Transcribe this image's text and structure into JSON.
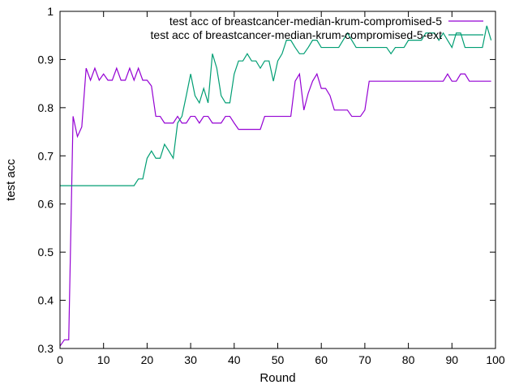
{
  "chart_data": {
    "type": "line",
    "title": "",
    "xlabel": "Round",
    "ylabel": "test acc",
    "xlim": [
      0,
      100
    ],
    "ylim": [
      0.3,
      1.0
    ],
    "xticks": [
      0,
      10,
      20,
      30,
      40,
      50,
      60,
      70,
      80,
      90,
      100
    ],
    "yticks": [
      0.3,
      0.4,
      0.5,
      0.6,
      0.7,
      0.8,
      0.9,
      1
    ],
    "xtick_labels": [
      "0",
      "10",
      "20",
      "30",
      "40",
      "50",
      "60",
      "70",
      "80",
      "90",
      "100"
    ],
    "ytick_labels": [
      "0.3",
      "0.4",
      "0.5",
      "0.6",
      "0.7",
      "0.8",
      "0.9",
      "1"
    ],
    "grid": false,
    "legend_position": "top-right",
    "series": [
      {
        "name": "test acc of breastcancer-median-krum-compromised-5",
        "color": "#9400d3",
        "values": [
          0.305,
          0.318,
          0.318,
          0.782,
          0.74,
          0.76,
          0.882,
          0.857,
          0.882,
          0.857,
          0.87,
          0.857,
          0.857,
          0.882,
          0.857,
          0.857,
          0.882,
          0.857,
          0.882,
          0.857,
          0.857,
          0.845,
          0.782,
          0.782,
          0.768,
          0.768,
          0.768,
          0.782,
          0.768,
          0.768,
          0.782,
          0.782,
          0.768,
          0.782,
          0.782,
          0.768,
          0.768,
          0.768,
          0.782,
          0.782,
          0.768,
          0.755,
          0.755,
          0.755,
          0.755,
          0.755,
          0.755,
          0.782,
          0.782,
          0.782,
          0.782,
          0.782,
          0.782,
          0.782,
          0.855,
          0.87,
          0.795,
          0.83,
          0.855,
          0.87,
          0.84,
          0.84,
          0.825,
          0.795,
          0.795,
          0.795,
          0.795,
          0.782,
          0.782,
          0.782,
          0.795,
          0.855,
          0.855,
          0.855,
          0.855,
          0.855,
          0.855,
          0.855,
          0.855,
          0.855,
          0.855,
          0.855,
          0.855,
          0.855,
          0.855,
          0.855,
          0.855,
          0.855,
          0.855,
          0.87,
          0.855,
          0.855,
          0.87,
          0.87,
          0.855,
          0.855,
          0.855,
          0.855,
          0.855,
          0.855
        ]
      },
      {
        "name": "test acc of breastcancer-median-krum-compromised-5-ext",
        "color": "#009e73",
        "values": [
          0.638,
          0.638,
          0.638,
          0.638,
          0.638,
          0.638,
          0.638,
          0.638,
          0.638,
          0.638,
          0.638,
          0.638,
          0.638,
          0.638,
          0.638,
          0.638,
          0.638,
          0.638,
          0.652,
          0.652,
          0.695,
          0.71,
          0.695,
          0.695,
          0.724,
          0.71,
          0.695,
          0.768,
          0.782,
          0.825,
          0.87,
          0.825,
          0.81,
          0.84,
          0.81,
          0.912,
          0.882,
          0.825,
          0.81,
          0.81,
          0.87,
          0.897,
          0.897,
          0.912,
          0.897,
          0.897,
          0.882,
          0.897,
          0.897,
          0.855,
          0.897,
          0.912,
          0.94,
          0.94,
          0.925,
          0.912,
          0.912,
          0.925,
          0.94,
          0.94,
          0.925,
          0.925,
          0.925,
          0.925,
          0.925,
          0.94,
          0.955,
          0.94,
          0.925,
          0.925,
          0.925,
          0.925,
          0.925,
          0.925,
          0.925,
          0.925,
          0.912,
          0.925,
          0.925,
          0.925,
          0.94,
          0.94,
          0.94,
          0.94,
          0.955,
          0.955,
          0.955,
          0.94,
          0.955,
          0.94,
          0.925,
          0.955,
          0.955,
          0.925,
          0.925,
          0.925,
          0.925,
          0.925,
          0.97,
          0.94
        ]
      }
    ]
  }
}
